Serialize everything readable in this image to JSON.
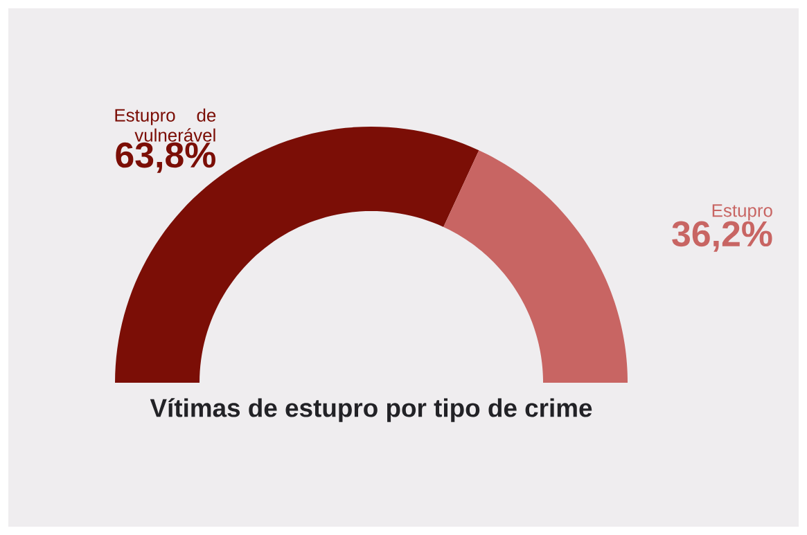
{
  "chart_data": {
    "type": "donut",
    "title": "Vítimas de estupro por tipo de crime",
    "categories": [
      "Estupro de vulnerável",
      "Estupro"
    ],
    "values": [
      63.8,
      36.2
    ],
    "colors": [
      "#7b0e06",
      "#c86563"
    ],
    "value_labels": [
      "63,8%",
      "36,2%"
    ]
  }
}
